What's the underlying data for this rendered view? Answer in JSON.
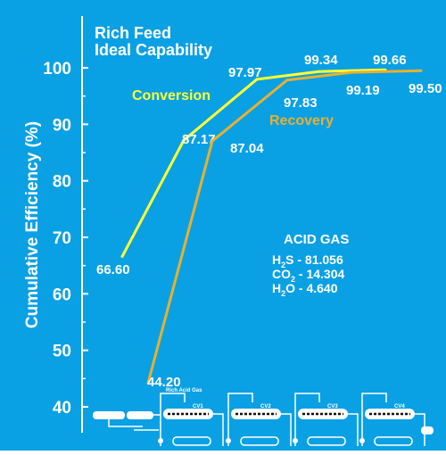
{
  "colors": {
    "background": "#0aa0e4",
    "axis": "#ffffff",
    "conversion": "#ffff33",
    "recovery": "#e8b030",
    "text": "#ffffff"
  },
  "chart_data": {
    "type": "line",
    "title": "Rich Feed",
    "subtitle": "Ideal Capability",
    "xlabel": "",
    "ylabel": "Cumulative Efficiency (%)",
    "ylim": [
      40,
      105
    ],
    "yticks": [
      40,
      50,
      60,
      70,
      80,
      90,
      100
    ],
    "x": [
      1,
      2,
      3,
      4,
      5
    ],
    "grid": false,
    "legend": "inline labels",
    "series": [
      {
        "name": "Conversion",
        "values": [
          66.6,
          87.17,
          97.97,
          99.34,
          99.66
        ],
        "labels": [
          "66.60",
          "87.17",
          "97.97",
          "99.34",
          "99.66"
        ]
      },
      {
        "name": "Recovery",
        "values": [
          44.2,
          87.04,
          97.83,
          99.19,
          99.5
        ],
        "labels": [
          "44.20",
          "87.04",
          "97.83",
          "99.19",
          "99.50"
        ]
      }
    ],
    "annotation": {
      "title": "ACID GAS",
      "lines": [
        {
          "pre": "H",
          "sub": "2",
          "post": "S - 81.056"
        },
        {
          "pre": "CO",
          "sub": "2",
          "post": " - 14.304"
        },
        {
          "pre": "H",
          "sub": "2",
          "post": "O -   4.640"
        }
      ]
    }
  },
  "schematic": {
    "units": [
      "CV1",
      "CV2",
      "CV3",
      "CV4"
    ],
    "feed_label": "Rich Acid Gas"
  }
}
